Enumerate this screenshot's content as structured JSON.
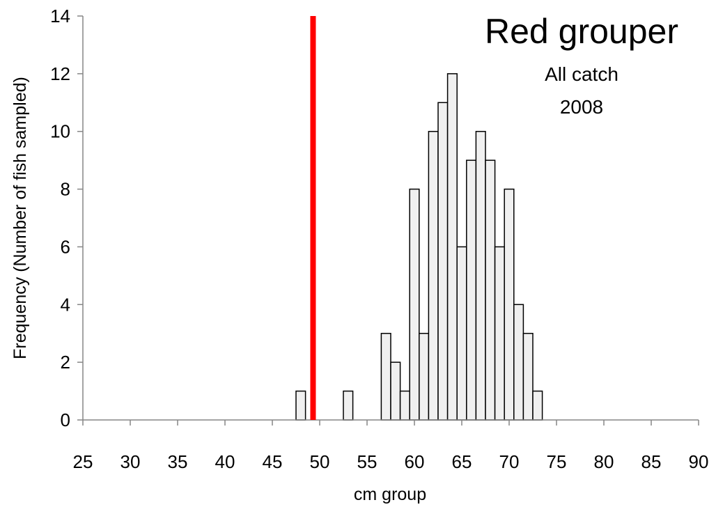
{
  "chart_data": {
    "type": "bar",
    "title": "Red grouper",
    "subtitle_lines": [
      "All catch",
      "2008"
    ],
    "xlabel": "cm group",
    "ylabel": "Frequency (Number of fish sampled)",
    "xlim": [
      25,
      90
    ],
    "ylim": [
      0,
      14
    ],
    "x_ticks": [
      25,
      30,
      35,
      40,
      45,
      50,
      55,
      60,
      65,
      70,
      75,
      80,
      85,
      90
    ],
    "y_ticks": [
      0,
      2,
      4,
      6,
      8,
      10,
      12,
      14
    ],
    "bin_width": 1,
    "bins": [
      {
        "x": 48,
        "count": 1
      },
      {
        "x": 53,
        "count": 1
      },
      {
        "x": 57,
        "count": 3
      },
      {
        "x": 58,
        "count": 2
      },
      {
        "x": 59,
        "count": 1
      },
      {
        "x": 60,
        "count": 8
      },
      {
        "x": 61,
        "count": 3
      },
      {
        "x": 62,
        "count": 10
      },
      {
        "x": 63,
        "count": 11
      },
      {
        "x": 64,
        "count": 12
      },
      {
        "x": 65,
        "count": 6
      },
      {
        "x": 66,
        "count": 9
      },
      {
        "x": 67,
        "count": 10
      },
      {
        "x": 68,
        "count": 9
      },
      {
        "x": 69,
        "count": 6
      },
      {
        "x": 70,
        "count": 8
      },
      {
        "x": 71,
        "count": 4
      },
      {
        "x": 72,
        "count": 3
      },
      {
        "x": 73,
        "count": 1
      }
    ],
    "reference_line": {
      "x": 49.3,
      "color": "#ff0000"
    },
    "bar_fill": "#f0f0f0",
    "bar_stroke": "#000000",
    "grid": false
  }
}
